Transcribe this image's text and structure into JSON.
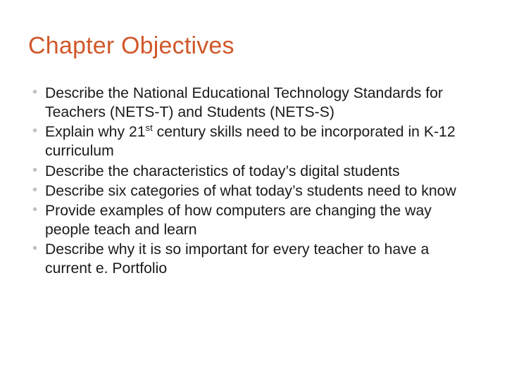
{
  "title": {
    "text": "Chapter Objectives",
    "color": "#d1582a",
    "fontsize": 34,
    "fontweight": 400
  },
  "body": {
    "text_color": "#1a1a1a",
    "fontsize": 21.2,
    "bullet_color": "#c0c0c0"
  },
  "bullets": [
    {
      "html": "Describe the National Educational Technology Standards for Teachers (NETS-T) and Students (NETS-S)"
    },
    {
      "html": "Explain why 21<sup>st</sup> century skills need to be incorporated in K-12 curriculum"
    },
    {
      "html": "Describe the characteristics of today’s digital students"
    },
    {
      "html": "Describe six categories of what today’s students need to know"
    },
    {
      "html": "Provide examples of how computers are changing the way people teach and learn"
    },
    {
      "html": "Describe why it is so important for every teacher to have a current e. Portfolio"
    }
  ],
  "background_color": "#ffffff"
}
